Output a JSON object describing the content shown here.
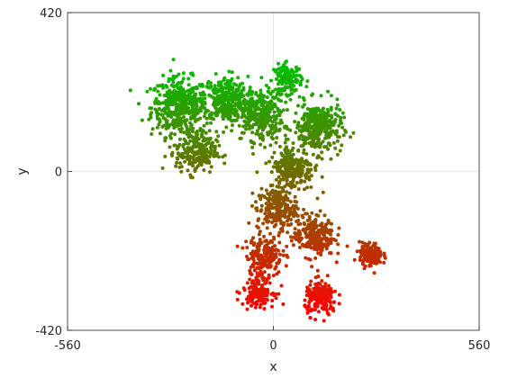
{
  "chart_data": {
    "type": "scatter",
    "title": "",
    "xlabel": "x",
    "ylabel": "y",
    "xlim": [
      -560,
      560
    ],
    "ylim": [
      -420,
      420
    ],
    "xticks": [
      "-560",
      "0",
      "560"
    ],
    "yticks": [
      "-420",
      "0",
      "420"
    ],
    "grid": true,
    "legend": "none",
    "colormap": {
      "low": "#ff0000",
      "high": "#00c000",
      "encoded_by": "y"
    },
    "clusters": [
      {
        "cx": -255,
        "cy": 170,
        "r": 70,
        "n": 420
      },
      {
        "cx": -130,
        "cy": 190,
        "r": 55,
        "n": 300
      },
      {
        "cx": -40,
        "cy": 150,
        "r": 60,
        "n": 320
      },
      {
        "cx": 40,
        "cy": 245,
        "r": 35,
        "n": 130
      },
      {
        "cx": 120,
        "cy": 115,
        "r": 60,
        "n": 320
      },
      {
        "cx": -210,
        "cy": 50,
        "r": 50,
        "n": 220
      },
      {
        "cx": 50,
        "cy": 10,
        "r": 55,
        "n": 240
      },
      {
        "cx": 10,
        "cy": -100,
        "r": 50,
        "n": 220
      },
      {
        "cx": 110,
        "cy": -170,
        "r": 50,
        "n": 240
      },
      {
        "cx": -25,
        "cy": -220,
        "r": 45,
        "n": 180
      },
      {
        "cx": 265,
        "cy": -220,
        "r": 28,
        "n": 170
      },
      {
        "cx": 130,
        "cy": -335,
        "r": 40,
        "n": 190
      },
      {
        "cx": -40,
        "cy": -315,
        "r": 38,
        "n": 150
      }
    ]
  }
}
